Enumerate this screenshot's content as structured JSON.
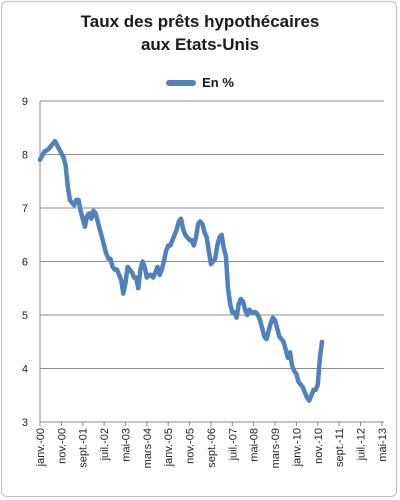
{
  "chart_data": {
    "type": "line",
    "title_lines": [
      "Taux des prêts hypothécaires",
      "aux Etats-Unis"
    ],
    "legend": "En %",
    "series": [
      {
        "name": "En %",
        "color": "#4f81bd",
        "points": [
          [
            0,
            7.9
          ],
          [
            2,
            8.05
          ],
          [
            4,
            8.1
          ],
          [
            6,
            8.2
          ],
          [
            7,
            8.25
          ],
          [
            9,
            8.1
          ],
          [
            11,
            7.95
          ],
          [
            12,
            7.8
          ],
          [
            13,
            7.4
          ],
          [
            14,
            7.15
          ],
          [
            15,
            7.1
          ],
          [
            16,
            7.05
          ],
          [
            17,
            7.15
          ],
          [
            18,
            7.15
          ],
          [
            19,
            6.95
          ],
          [
            20,
            6.8
          ],
          [
            21,
            6.65
          ],
          [
            22,
            6.85
          ],
          [
            23,
            6.9
          ],
          [
            24,
            6.8
          ],
          [
            25,
            6.95
          ],
          [
            26,
            6.9
          ],
          [
            27,
            6.75
          ],
          [
            28,
            6.6
          ],
          [
            29,
            6.45
          ],
          [
            30,
            6.3
          ],
          [
            31,
            6.15
          ],
          [
            32,
            6.05
          ],
          [
            33,
            6.05
          ],
          [
            34,
            5.9
          ],
          [
            35,
            5.85
          ],
          [
            36,
            5.85
          ],
          [
            37,
            5.75
          ],
          [
            38,
            5.65
          ],
          [
            39,
            5.4
          ],
          [
            40,
            5.6
          ],
          [
            41,
            5.9
          ],
          [
            42,
            5.85
          ],
          [
            43,
            5.8
          ],
          [
            44,
            5.7
          ],
          [
            45,
            5.7
          ],
          [
            46,
            5.5
          ],
          [
            47,
            5.85
          ],
          [
            48,
            6.0
          ],
          [
            49,
            5.9
          ],
          [
            50,
            5.7
          ],
          [
            51,
            5.75
          ],
          [
            52,
            5.75
          ],
          [
            53,
            5.7
          ],
          [
            54,
            5.8
          ],
          [
            55,
            5.9
          ],
          [
            56,
            5.75
          ],
          [
            57,
            5.85
          ],
          [
            58,
            6.0
          ],
          [
            59,
            6.2
          ],
          [
            60,
            6.3
          ],
          [
            61,
            6.3
          ],
          [
            62,
            6.4
          ],
          [
            63,
            6.5
          ],
          [
            64,
            6.6
          ],
          [
            65,
            6.75
          ],
          [
            66,
            6.8
          ],
          [
            67,
            6.6
          ],
          [
            68,
            6.5
          ],
          [
            69,
            6.45
          ],
          [
            70,
            6.4
          ],
          [
            71,
            6.4
          ],
          [
            72,
            6.3
          ],
          [
            73,
            6.45
          ],
          [
            74,
            6.7
          ],
          [
            75,
            6.75
          ],
          [
            76,
            6.7
          ],
          [
            77,
            6.55
          ],
          [
            78,
            6.45
          ],
          [
            79,
            6.2
          ],
          [
            80,
            5.95
          ],
          [
            81,
            6.0
          ],
          [
            82,
            6.05
          ],
          [
            83,
            6.3
          ],
          [
            84,
            6.45
          ],
          [
            85,
            6.5
          ],
          [
            86,
            6.25
          ],
          [
            87,
            6.1
          ],
          [
            88,
            5.5
          ],
          [
            89,
            5.2
          ],
          [
            90,
            5.05
          ],
          [
            91,
            5.05
          ],
          [
            92,
            4.95
          ],
          [
            93,
            5.2
          ],
          [
            94,
            5.3
          ],
          [
            95,
            5.25
          ],
          [
            96,
            5.1
          ],
          [
            97,
            5.0
          ],
          [
            98,
            5.1
          ],
          [
            99,
            5.05
          ],
          [
            100,
            5.05
          ],
          [
            101,
            5.05
          ],
          [
            102,
            5.0
          ],
          [
            103,
            4.9
          ],
          [
            104,
            4.75
          ],
          [
            105,
            4.6
          ],
          [
            106,
            4.55
          ],
          [
            107,
            4.7
          ],
          [
            108,
            4.85
          ],
          [
            109,
            4.95
          ],
          [
            110,
            4.9
          ],
          [
            111,
            4.75
          ],
          [
            112,
            4.6
          ],
          [
            113,
            4.55
          ],
          [
            114,
            4.5
          ],
          [
            115,
            4.35
          ],
          [
            116,
            4.2
          ],
          [
            117,
            4.3
          ],
          [
            118,
            4.05
          ],
          [
            119,
            3.95
          ],
          [
            120,
            3.9
          ],
          [
            121,
            3.75
          ],
          [
            122,
            3.7
          ],
          [
            123,
            3.65
          ],
          [
            124,
            3.55
          ],
          [
            125,
            3.45
          ],
          [
            126,
            3.4
          ],
          [
            127,
            3.5
          ],
          [
            128,
            3.6
          ],
          [
            129,
            3.6
          ],
          [
            130,
            3.7
          ],
          [
            131,
            4.2
          ],
          [
            132,
            4.5
          ]
        ]
      }
    ],
    "x_tick_labels": [
      "janv.-00",
      "nov.-00",
      "sept.-01",
      "juil.-02",
      "mai-03",
      "mars-04",
      "janv.-05",
      "nov.-05",
      "sept.-06",
      "juil.-07",
      "mai-08",
      "mars-09",
      "janv.-10",
      "nov.-10",
      "sept.-11",
      "juil.-12",
      "mai-13"
    ],
    "x_tick_positions_months": [
      0,
      10,
      20,
      30,
      40,
      50,
      60,
      70,
      80,
      90,
      100,
      110,
      120,
      130,
      140,
      150,
      160
    ],
    "y_ticks": [
      3,
      4,
      5,
      6,
      7,
      8,
      9
    ],
    "ylim": [
      3,
      9
    ],
    "xlim_months": [
      0,
      161
    ],
    "grid": "horizontal",
    "legend_position": "top-center"
  }
}
